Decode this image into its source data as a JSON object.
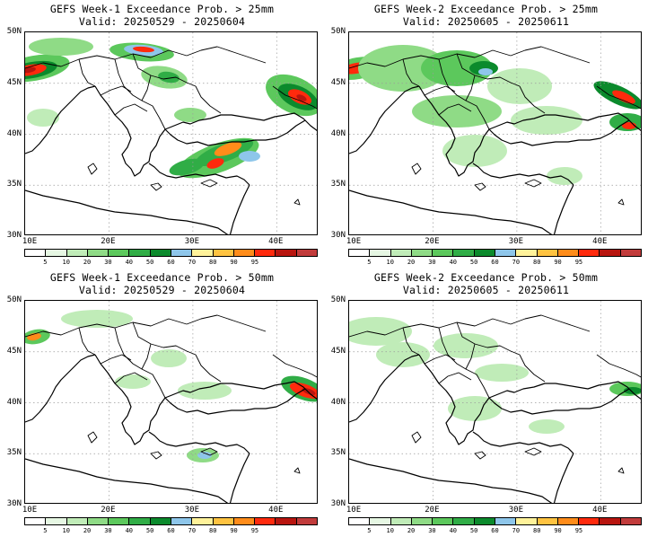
{
  "panels": [
    {
      "title": "GEFS Week-1 Exceedance Prob. > 25mm",
      "valid": "Valid: 20250529 - 20250604"
    },
    {
      "title": "GEFS Week-2 Exceedance Prob. > 25mm",
      "valid": "Valid: 20250605 - 20250611"
    },
    {
      "title": "GEFS Week-1 Exceedance Prob. > 50mm",
      "valid": "Valid: 20250529 - 20250604"
    },
    {
      "title": "GEFS Week-2 Exceedance Prob. > 50mm",
      "valid": "Valid: 20250605 - 20250611"
    }
  ],
  "lat_ticks": [
    "50N",
    "45N",
    "40N",
    "35N",
    "30N"
  ],
  "lon_ticks": [
    "10E",
    "20E",
    "30E",
    "40E"
  ],
  "colorbar": {
    "colors": [
      "#ffffff",
      "#e6f7e3",
      "#c0ecb8",
      "#8fdb86",
      "#5cc85c",
      "#30ad46",
      "#0b8a2c",
      "#8ec6ea",
      "#fff29a",
      "#ffc341",
      "#ff8c1a",
      "#ff2a0d",
      "#b8150f",
      "#c13b3b"
    ],
    "labels": [
      "5",
      "10",
      "20",
      "30",
      "40",
      "50",
      "60",
      "70",
      "80",
      "90",
      "95"
    ]
  }
}
